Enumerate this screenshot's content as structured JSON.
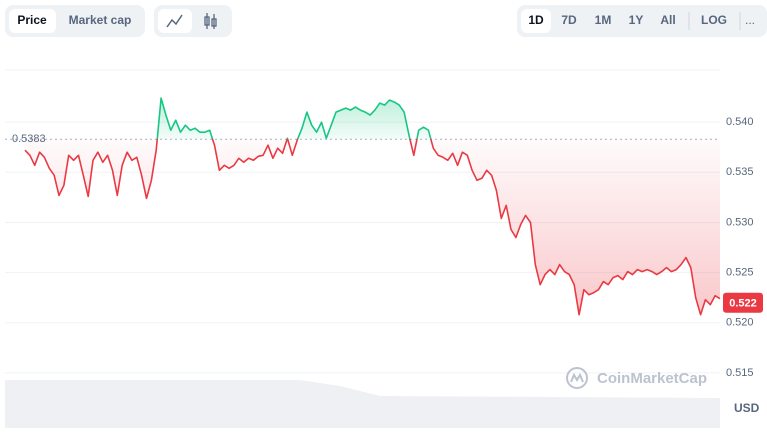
{
  "toolbar": {
    "metric_tabs": [
      "Price",
      "Market cap"
    ],
    "ranges": [
      "1D",
      "7D",
      "1M",
      "1Y",
      "All"
    ],
    "scale": "LOG",
    "more": "..."
  },
  "watermark": "CoinMarketCap",
  "currency": "USD",
  "chart_data": {
    "type": "line",
    "reference": 0.5383,
    "last_price": 0.522,
    "up_color": "#16c784",
    "down_color": "#ea3943",
    "grid": true,
    "ylim": [
      0.5123,
      0.5452
    ],
    "yticks": [
      0.515,
      {
        "value": 0.52,
        "label": "0.520"
      },
      0.525,
      {
        "value": 0.53,
        "label": "0.530"
      },
      0.535,
      {
        "value": 0.54,
        "label": "0.540"
      }
    ],
    "values": [
      0.5372,
      0.5367,
      0.5357,
      0.537,
      0.5365,
      0.5354,
      0.5347,
      0.5327,
      0.5337,
      0.5367,
      0.5362,
      0.5367,
      0.5347,
      0.5326,
      0.5362,
      0.537,
      0.536,
      0.5367,
      0.5352,
      0.5327,
      0.5357,
      0.537,
      0.5362,
      0.5365,
      0.5347,
      0.5324,
      0.5342,
      0.5372,
      0.5424,
      0.5407,
      0.5392,
      0.5402,
      0.539,
      0.5397,
      0.5392,
      0.5394,
      0.539,
      0.539,
      0.5392,
      0.5377,
      0.5352,
      0.5357,
      0.5354,
      0.5357,
      0.5364,
      0.536,
      0.5364,
      0.5362,
      0.5366,
      0.5367,
      0.5377,
      0.5364,
      0.5374,
      0.5369,
      0.5384,
      0.5367,
      0.5382,
      0.5394,
      0.541,
      0.5397,
      0.539,
      0.54,
      0.5384,
      0.5397,
      0.541,
      0.5412,
      0.5414,
      0.5412,
      0.5415,
      0.5412,
      0.541,
      0.5407,
      0.5412,
      0.5419,
      0.5417,
      0.5422,
      0.542,
      0.5417,
      0.541,
      0.5387,
      0.5367,
      0.5392,
      0.5395,
      0.5392,
      0.5374,
      0.5367,
      0.5365,
      0.5362,
      0.5369,
      0.5357,
      0.537,
      0.5367,
      0.5352,
      0.5342,
      0.5344,
      0.5352,
      0.5347,
      0.5332,
      0.5304,
      0.5317,
      0.5293,
      0.5285,
      0.5298,
      0.5307,
      0.53,
      0.5258,
      0.5238,
      0.5248,
      0.5253,
      0.5248,
      0.5258,
      0.5251,
      0.5248,
      0.5238,
      0.5208,
      0.5233,
      0.5228,
      0.523,
      0.5233,
      0.5241,
      0.5238,
      0.5245,
      0.5247,
      0.5243,
      0.5251,
      0.5248,
      0.5253,
      0.5251,
      0.5253,
      0.5251,
      0.5248,
      0.5251,
      0.5255,
      0.5251,
      0.5253,
      0.5258,
      0.5265,
      0.5255,
      0.5225,
      0.5208,
      0.5223,
      0.5218,
      0.5227,
      0.5224
    ]
  }
}
